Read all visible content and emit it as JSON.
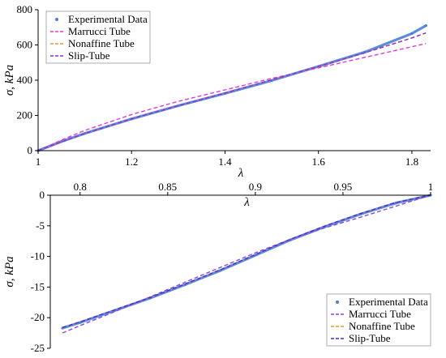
{
  "chart_data": [
    {
      "type": "line",
      "xlabel": "λ",
      "ylabel": "σ, kPa",
      "xlim": [
        1,
        1.84
      ],
      "ylim": [
        0,
        800
      ],
      "xticks": [
        "1",
        "1.2",
        "1.4",
        "1.6",
        "1.8"
      ],
      "yticks": [
        "0",
        "200",
        "400",
        "600",
        "800"
      ],
      "legend_position": "top-left",
      "series": [
        {
          "name": "Experimental Data",
          "style": "points",
          "color": "#4a7fd6",
          "x": [
            1,
            1.05,
            1.1,
            1.2,
            1.3,
            1.4,
            1.5,
            1.6,
            1.7,
            1.8,
            1.83
          ],
          "y": [
            0,
            52,
            98,
            180,
            255,
            325,
            398,
            478,
            560,
            665,
            710
          ]
        },
        {
          "name": "Marrucci Tube",
          "style": "dashed",
          "color": "#e23ad8",
          "x": [
            1,
            1.05,
            1.1,
            1.2,
            1.3,
            1.4,
            1.5,
            1.6,
            1.7,
            1.8,
            1.83
          ],
          "y": [
            0,
            60,
            115,
            205,
            280,
            345,
            410,
            470,
            530,
            590,
            608
          ]
        },
        {
          "name": "Nonaffine Tube",
          "style": "dashed",
          "color": "#f0932b",
          "x": [
            1,
            1.05,
            1.1,
            1.2,
            1.3,
            1.4,
            1.5,
            1.6,
            1.7,
            1.8,
            1.83
          ],
          "y": [
            0,
            50,
            97,
            180,
            255,
            327,
            402,
            478,
            556,
            640,
            668
          ]
        },
        {
          "name": "Slip-Tube",
          "style": "dashed",
          "color": "#8c2fd6",
          "x": [
            1,
            1.05,
            1.1,
            1.2,
            1.3,
            1.4,
            1.5,
            1.6,
            1.7,
            1.8,
            1.83
          ],
          "y": [
            0,
            50,
            97,
            180,
            255,
            327,
            402,
            478,
            556,
            640,
            668
          ]
        }
      ]
    },
    {
      "type": "line",
      "xlabel": "λ",
      "ylabel": "σ, kPa",
      "xlim": [
        0.783,
        1
      ],
      "ylim": [
        -25,
        0
      ],
      "xticks": [
        "0.8",
        "0.85",
        "0.9",
        "0.95",
        "1"
      ],
      "yticks": [
        "0",
        "-5",
        "-10",
        "-15",
        "-20",
        "-25"
      ],
      "legend_position": "bottom-right",
      "series": [
        {
          "name": "Experimental Data",
          "style": "points",
          "color": "#4a7fd6",
          "x": [
            0.79,
            0.8,
            0.82,
            0.84,
            0.86,
            0.88,
            0.9,
            0.92,
            0.94,
            0.96,
            0.98,
            1
          ],
          "y": [
            -21.7,
            -20.8,
            -18.8,
            -16.8,
            -14.6,
            -12.3,
            -9.8,
            -7.3,
            -5.1,
            -3.1,
            -1.3,
            0
          ]
        },
        {
          "name": "Marrucci Tube",
          "style": "dashed",
          "color": "#8a48e8",
          "x": [
            0.79,
            0.8,
            0.82,
            0.84,
            0.86,
            0.88,
            0.9,
            0.92,
            0.94,
            0.96,
            0.98,
            1
          ],
          "y": [
            -22.5,
            -21.3,
            -19.0,
            -16.6,
            -14.2,
            -11.8,
            -9.4,
            -7.2,
            -5.3,
            -3.6,
            -1.8,
            0
          ]
        },
        {
          "name": "Nonaffine Tube",
          "style": "dashed",
          "color": "#d4a017",
          "x": [
            0.79,
            0.8,
            0.82,
            0.84,
            0.86,
            0.88,
            0.9,
            0.92,
            0.94,
            0.96,
            0.98,
            1
          ],
          "y": [
            -21.6,
            -20.7,
            -18.7,
            -16.7,
            -14.5,
            -12.2,
            -9.7,
            -7.2,
            -5.0,
            -3.0,
            -1.2,
            0
          ]
        },
        {
          "name": "Slip-Tube",
          "style": "dashed",
          "color": "#4b2bd1",
          "x": [
            0.79,
            0.8,
            0.82,
            0.84,
            0.86,
            0.88,
            0.9,
            0.92,
            0.94,
            0.96,
            0.98,
            1
          ],
          "y": [
            -21.6,
            -20.7,
            -18.7,
            -16.7,
            -14.5,
            -12.2,
            -9.7,
            -7.2,
            -5.0,
            -3.0,
            -1.2,
            0
          ]
        }
      ]
    }
  ]
}
